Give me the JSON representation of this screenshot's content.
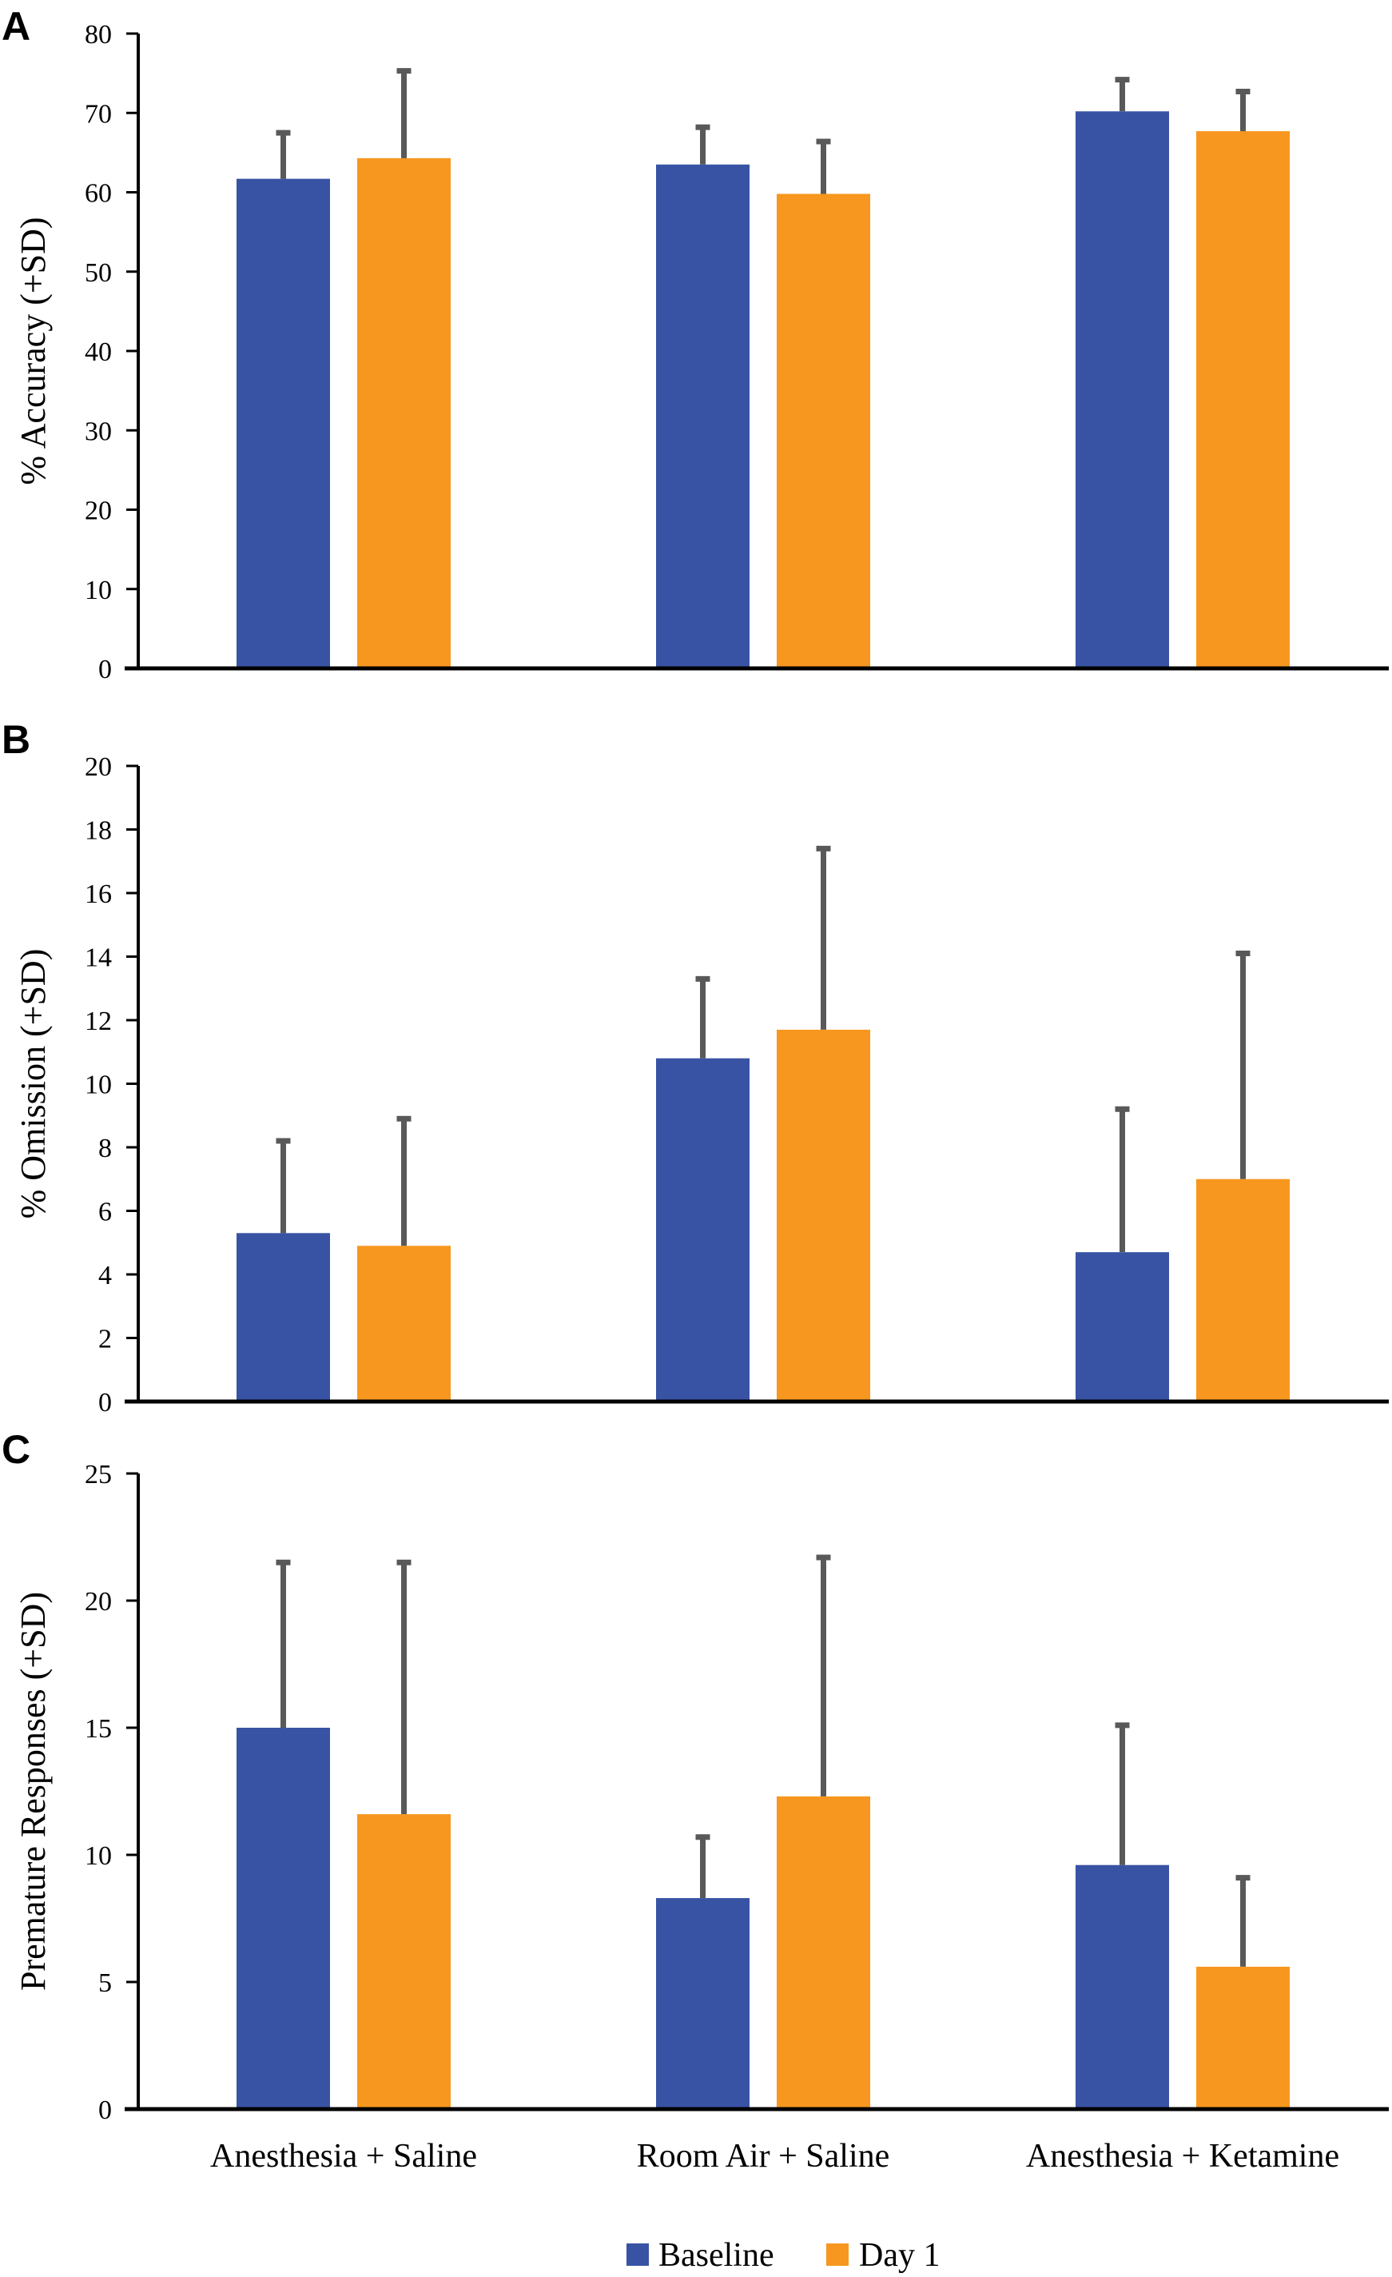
{
  "chart_data": [
    {
      "panel": "A",
      "type": "bar",
      "ylabel": "% Accuracy (+SD)",
      "ylim": [
        0,
        80
      ],
      "yticks": [
        0,
        10,
        20,
        30,
        40,
        50,
        60,
        70,
        80
      ],
      "categories": [
        "Anesthesia + Saline",
        "Room Air + Saline",
        "Anesthesia + Ketamine"
      ],
      "series": [
        {
          "name": "Baseline",
          "values": [
            61.7,
            63.5,
            70.2
          ],
          "sd": [
            5.8,
            4.7,
            4.0
          ]
        },
        {
          "name": "Day 1",
          "values": [
            64.3,
            59.8,
            67.7
          ],
          "sd": [
            11.0,
            6.6,
            5.0
          ]
        }
      ]
    },
    {
      "panel": "B",
      "type": "bar",
      "ylabel": "% Omission (+SD)",
      "ylim": [
        0,
        20
      ],
      "yticks": [
        0,
        2,
        4,
        6,
        8,
        10,
        12,
        14,
        16,
        18,
        20
      ],
      "categories": [
        "Anesthesia + Saline",
        "Room Air + Saline",
        "Anesthesia + Ketamine"
      ],
      "series": [
        {
          "name": "Baseline",
          "values": [
            5.3,
            10.8,
            4.7
          ],
          "sd": [
            2.9,
            2.5,
            4.5
          ]
        },
        {
          "name": "Day 1",
          "values": [
            4.9,
            11.7,
            7.0
          ],
          "sd": [
            4.0,
            5.7,
            7.1
          ]
        }
      ]
    },
    {
      "panel": "C",
      "type": "bar",
      "ylabel": "Premature Responses (+SD)",
      "ylim": [
        0,
        25
      ],
      "yticks": [
        0,
        5,
        10,
        15,
        20,
        25
      ],
      "categories": [
        "Anesthesia + Saline",
        "Room Air + Saline",
        "Anesthesia + Ketamine"
      ],
      "series": [
        {
          "name": "Baseline",
          "values": [
            15.0,
            8.3,
            9.6
          ],
          "sd": [
            6.5,
            2.4,
            5.5
          ]
        },
        {
          "name": "Day 1",
          "values": [
            11.6,
            12.3,
            5.6
          ],
          "sd": [
            9.9,
            9.4,
            3.5
          ]
        }
      ]
    }
  ],
  "legend": [
    {
      "name": "Baseline",
      "color": "#3953a4"
    },
    {
      "name": "Day 1",
      "color": "#f7971f"
    }
  ],
  "colors": {
    "baseline": "#3953a4",
    "day1": "#f7971f",
    "error_bar": "#595959",
    "axis": "#000000"
  }
}
